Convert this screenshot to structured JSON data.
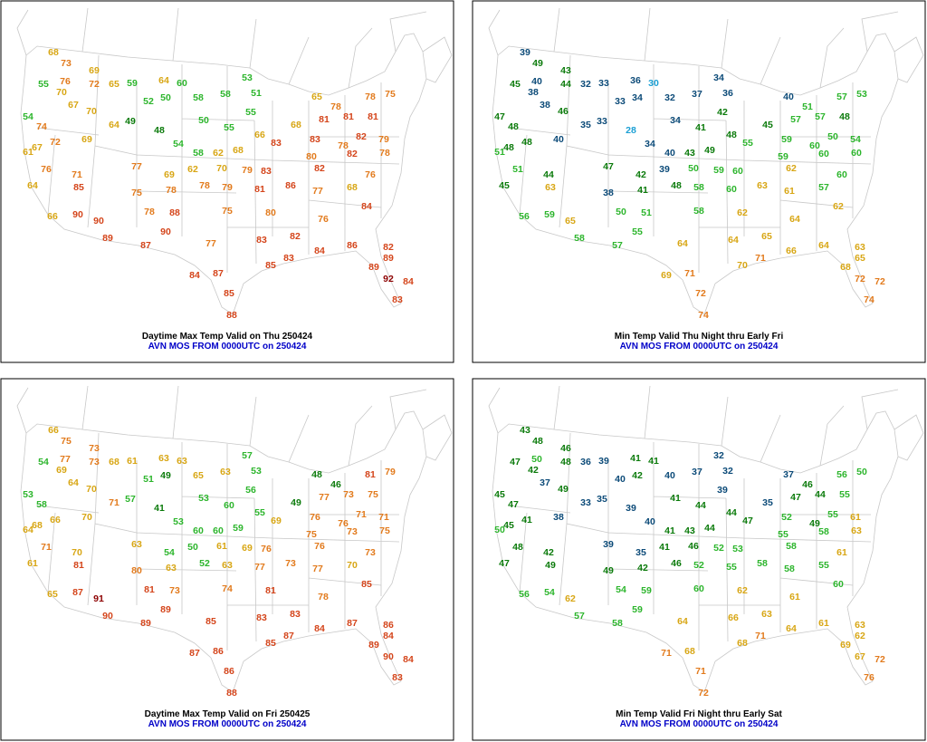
{
  "panels": [
    {
      "title": "Daytime Max Temp Valid on Thu 250424",
      "subtitle": "AVN MOS FROM 0000UTC on 250424",
      "values": [
        68,
        73,
        69,
        55,
        76,
        72,
        65,
        59,
        64,
        60,
        53,
        70,
        67,
        70,
        54,
        74,
        72,
        69,
        67,
        61,
        64,
        49,
        52,
        50,
        58,
        58,
        51,
        55,
        50,
        55,
        48,
        54,
        58,
        62,
        68,
        66,
        68,
        65,
        78,
        78,
        75,
        81,
        81,
        81,
        83,
        83,
        78,
        82,
        79,
        80,
        82,
        78,
        76,
        71,
        77,
        69,
        62,
        70,
        79,
        83,
        86,
        82,
        76,
        64,
        85,
        75,
        78,
        78,
        79,
        81,
        77,
        68,
        84,
        66,
        90,
        78,
        88,
        75,
        80,
        76,
        90,
        90,
        89,
        87,
        77,
        83,
        82,
        84,
        86,
        82,
        89,
        84,
        87,
        85,
        83,
        89,
        92,
        84,
        83,
        85,
        88
      ]
    },
    {
      "title": "Min Temp Valid Thu Night thru Early Fri",
      "subtitle": "AVN MOS FROM 0000UTC on 250424",
      "values": [
        39,
        49,
        43,
        45,
        40,
        44,
        32,
        33,
        36,
        30,
        34,
        38,
        38,
        46,
        47,
        48,
        48,
        40,
        48,
        51,
        35,
        33,
        33,
        34,
        32,
        37,
        36,
        42,
        34,
        41,
        28,
        34,
        40,
        43,
        49,
        48,
        45,
        40,
        51,
        57,
        53,
        57,
        57,
        48,
        55,
        59,
        60,
        50,
        54,
        59,
        60,
        60,
        51,
        44,
        47,
        42,
        39,
        50,
        59,
        60,
        63,
        62,
        60,
        45,
        63,
        38,
        41,
        48,
        58,
        60,
        61,
        57,
        62,
        56,
        59,
        50,
        51,
        58,
        62,
        64,
        65,
        55,
        58,
        57,
        64,
        64,
        65,
        66,
        64,
        63,
        65,
        69,
        71,
        70,
        71,
        68,
        72,
        72,
        74,
        72,
        74
      ]
    },
    {
      "title": "Daytime Max Temp Valid on Fri 250425",
      "subtitle": "AVN MOS FROM 0000UTC on 250424",
      "values": [
        66,
        75,
        73,
        54,
        77,
        73,
        68,
        61,
        63,
        63,
        57,
        69,
        64,
        70,
        53,
        58,
        66,
        70,
        68,
        64,
        71,
        57,
        51,
        49,
        65,
        63,
        53,
        56,
        53,
        60,
        41,
        53,
        60,
        60,
        59,
        55,
        49,
        48,
        46,
        81,
        79,
        77,
        73,
        75,
        69,
        76,
        76,
        71,
        71,
        75,
        73,
        75,
        71,
        70,
        63,
        54,
        50,
        61,
        69,
        76,
        73,
        76,
        73,
        61,
        81,
        80,
        63,
        52,
        63,
        77,
        77,
        70,
        85,
        65,
        87,
        81,
        73,
        74,
        81,
        78,
        91,
        89,
        90,
        89,
        85,
        83,
        83,
        84,
        87,
        86,
        84,
        87,
        86,
        85,
        87,
        89,
        90,
        84,
        83,
        86,
        88
      ]
    },
    {
      "title": "Min Temp Valid Fri Night thru Early Sat",
      "subtitle": "AVN MOS FROM 0000UTC on 250424",
      "values": [
        43,
        48,
        46,
        47,
        50,
        48,
        36,
        39,
        41,
        41,
        32,
        42,
        37,
        49,
        45,
        47,
        41,
        38,
        45,
        50,
        33,
        35,
        40,
        42,
        40,
        37,
        32,
        39,
        41,
        44,
        39,
        40,
        41,
        43,
        44,
        44,
        35,
        37,
        46,
        56,
        50,
        47,
        44,
        55,
        47,
        52,
        49,
        55,
        61,
        55,
        58,
        63,
        48,
        42,
        39,
        35,
        41,
        46,
        52,
        53,
        58,
        58,
        61,
        47,
        49,
        49,
        42,
        46,
        52,
        55,
        58,
        55,
        60,
        56,
        54,
        54,
        59,
        60,
        62,
        61,
        62,
        59,
        57,
        58,
        64,
        66,
        63,
        64,
        61,
        63,
        62,
        71,
        68,
        68,
        71,
        69,
        67,
        72,
        76,
        71,
        72
      ]
    }
  ]
}
